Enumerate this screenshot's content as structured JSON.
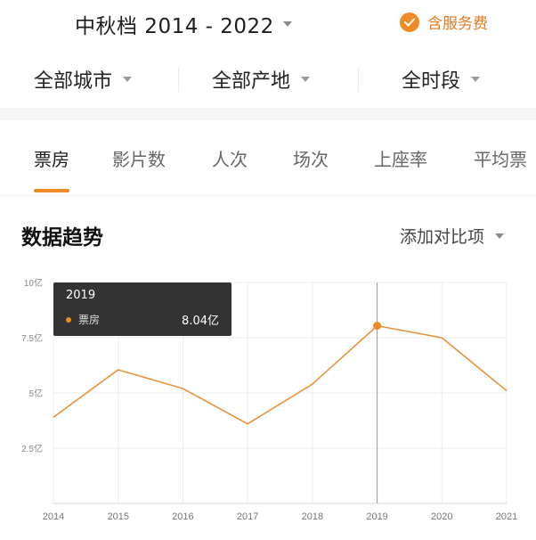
{
  "header": {
    "title": "中秋档 2014 - 2022",
    "service_label": "含服务费"
  },
  "filters": [
    {
      "label": "全部城市"
    },
    {
      "label": "全部产地"
    },
    {
      "label": "全时段"
    }
  ],
  "tabs": [
    {
      "label": "票房",
      "active": true
    },
    {
      "label": "影片数"
    },
    {
      "label": "人次"
    },
    {
      "label": "场次"
    },
    {
      "label": "上座率"
    },
    {
      "label": "平均票"
    }
  ],
  "section": {
    "title": "数据趋势",
    "compare_label": "添加对比项"
  },
  "tooltip": {
    "year": "2019",
    "series_label": "票房",
    "value": "8.04亿"
  },
  "colors": {
    "accent": "#f08a24",
    "line": "#e8923a",
    "grid": "#ececec",
    "tooltip_bg": "#333333"
  },
  "chart_data": {
    "type": "line",
    "x": [
      "2014",
      "2015",
      "2016",
      "2017",
      "2018",
      "2019",
      "2020",
      "2021"
    ],
    "series": [
      {
        "name": "票房",
        "values": [
          3.9,
          6.05,
          5.2,
          3.6,
          5.4,
          8.04,
          7.5,
          5.1
        ]
      }
    ],
    "y_ticks": [
      "10亿",
      "7.5亿",
      "5亿",
      "2.5亿"
    ],
    "y_tick_values": [
      10,
      7.5,
      5,
      2.5
    ],
    "ylim": [
      0,
      10
    ],
    "highlight_index": 5,
    "grid": true
  }
}
